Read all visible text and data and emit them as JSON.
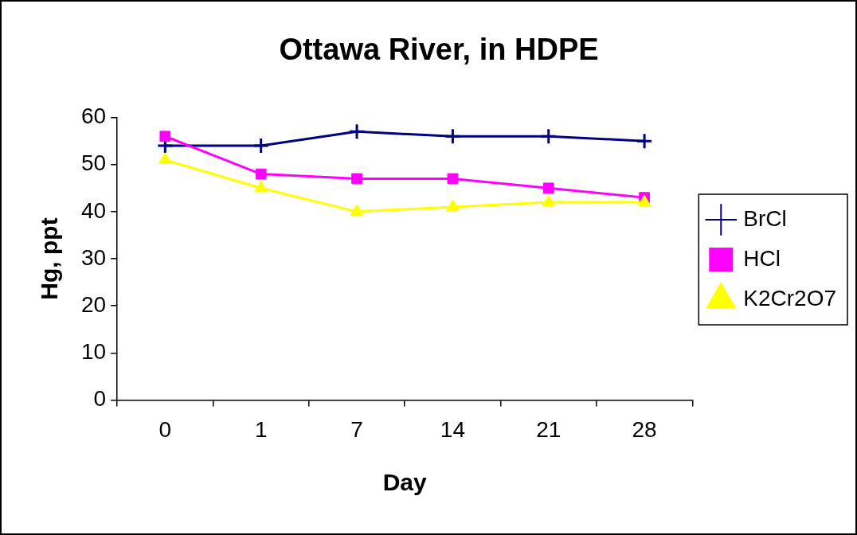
{
  "chart_data": {
    "type": "line",
    "title": "Ottawa River, in HDPE",
    "xlabel": "Day",
    "ylabel": "Hg, ppt",
    "categories": [
      "0",
      "1",
      "7",
      "14",
      "21",
      "28"
    ],
    "series": [
      {
        "name": "BrCl",
        "color": "#000080",
        "marker": "cross",
        "values": [
          54,
          54,
          57,
          56,
          56,
          55
        ]
      },
      {
        "name": "HCl",
        "color": "#ff00ff",
        "marker": "square",
        "values": [
          56,
          48,
          47,
          47,
          45,
          43
        ]
      },
      {
        "name": "K2Cr2O7",
        "color": "#ffff00",
        "marker": "triangle",
        "values": [
          51,
          45,
          40,
          41,
          42,
          42
        ]
      }
    ],
    "ylim": [
      0,
      60
    ],
    "yticks": [
      0,
      10,
      20,
      30,
      40,
      50,
      60
    ],
    "grid": false,
    "legend": "right"
  }
}
